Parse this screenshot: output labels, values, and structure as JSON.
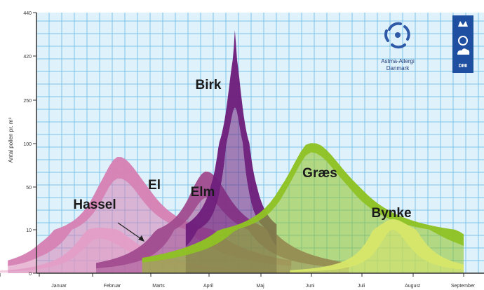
{
  "chart_data": {
    "type": "area",
    "ylabel": "Antal pollen pr. m³",
    "yticks": [
      "0",
      "10",
      "50",
      "100",
      "250",
      "420",
      "440"
    ],
    "months": [
      "Januar",
      "Februar",
      "Marts",
      "April",
      "Maj",
      "Juni",
      "Juli",
      "August",
      "September"
    ],
    "grid": true,
    "background": "#dff1fb",
    "grid_color": "#7ec3ea",
    "axis_color": "#333333",
    "series": [
      {
        "name": "Hassel",
        "color": "#f4c2dc",
        "peak_month": 2.1,
        "peak_low": 8,
        "peak_high": 12
      },
      {
        "name": "El",
        "color": "#d681b4",
        "peak_month": 2.45,
        "peak_low": 60,
        "peak_high": 85
      },
      {
        "name": "Elm",
        "color": "#a14c8f",
        "peak_month": 3.95,
        "peak_low": 40,
        "peak_high": 68
      },
      {
        "name": "Birk",
        "color": "#6e1f7c",
        "peak_month": 4.5,
        "peak_low": 225,
        "peak_high": 432
      },
      {
        "name": "Græs",
        "color": "#8ec223",
        "peak_month": 6.0,
        "peak_low": 90,
        "peak_high": 102
      },
      {
        "name": "Bynke",
        "color": "#d7e66a",
        "peak_month": 7.6,
        "peak_low": 10,
        "peak_high": 20
      }
    ],
    "annotations": [
      {
        "text": "Hassel",
        "points_to": "Hassel"
      }
    ]
  },
  "logos": {
    "astma_line1": "Astma-Allergi",
    "astma_line2": "Danmark",
    "dmi": "DMI"
  }
}
